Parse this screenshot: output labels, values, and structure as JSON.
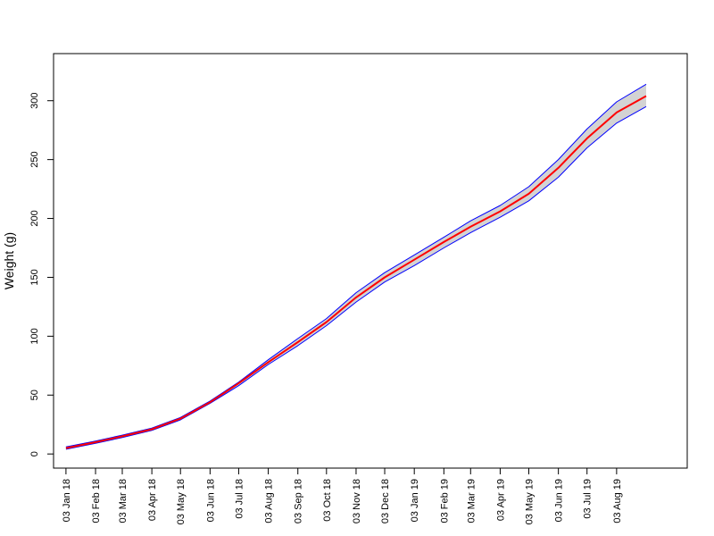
{
  "chart_data": {
    "type": "line",
    "title": "",
    "xlabel": "",
    "ylabel": "Weight (g)",
    "x_tick_labels": [
      "03 Jan 18",
      "03 Feb 18",
      "03 Mar 18",
      "03 Apr 18",
      "03 May 18",
      "03 Jun 18",
      "03 Jul 18",
      "03 Aug 18",
      "03 Sep 18",
      "03 Oct 18",
      "03 Nov 18",
      "03 Dec 18",
      "03 Jan 19",
      "03 Feb 19",
      "03 Mar 19",
      "03 Apr 19",
      "03 May 19",
      "03 Jun 19",
      "03 Jul 19",
      "03 Aug 19"
    ],
    "y_ticks": [
      0,
      50,
      100,
      150,
      200,
      250,
      300
    ],
    "ylim": [
      -12,
      340
    ],
    "xlim": [
      "2017-12-21",
      "2019-10-16"
    ],
    "grid": false,
    "legend": "none",
    "colors": {
      "mean": "#ff0000",
      "bounds": "#0000ff",
      "band": "#d3d3d3"
    },
    "series": [
      {
        "x": [
          "2018-01-03",
          "2018-02-03",
          "2018-03-03",
          "2018-04-03",
          "2018-05-03",
          "2018-06-03",
          "2018-07-03",
          "2018-08-03",
          "2018-09-03",
          "2018-10-03",
          "2018-11-03",
          "2018-12-03",
          "2019-01-03",
          "2019-02-03",
          "2019-03-03",
          "2019-04-03",
          "2019-05-03",
          "2019-06-03",
          "2019-07-03",
          "2019-08-03",
          "2019-09-03"
        ],
        "mean": [
          5,
          10,
          15,
          21,
          30,
          44,
          60,
          78,
          95,
          112,
          133,
          150,
          165,
          180,
          193,
          206,
          221,
          243,
          268,
          290,
          304
        ],
        "upper": [
          6,
          11,
          16,
          22,
          31,
          45,
          61,
          80,
          98,
          115,
          137,
          154,
          169,
          184,
          198,
          211,
          227,
          250,
          276,
          299,
          314
        ],
        "lower": [
          4,
          9,
          14,
          20,
          29,
          43,
          58,
          76,
          92,
          109,
          129,
          146,
          160,
          175,
          188,
          201,
          215,
          235,
          260,
          281,
          295
        ]
      }
    ]
  }
}
